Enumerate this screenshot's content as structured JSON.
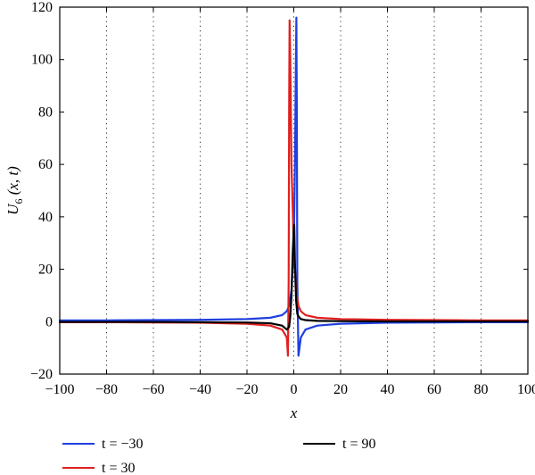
{
  "chart_data": {
    "type": "line",
    "xlabel": "x",
    "ylabel": "U6 (x, t)",
    "ylabel_parts": {
      "main": "U",
      "sub": "6",
      "rest": " (x, t)"
    },
    "xlim": [
      -100,
      100
    ],
    "ylim": [
      -20,
      120
    ],
    "xticks": [
      -100,
      -80,
      -60,
      -40,
      -20,
      0,
      20,
      40,
      60,
      80,
      100
    ],
    "yticks": [
      -20,
      0,
      20,
      40,
      60,
      80,
      100,
      120
    ],
    "xtick_labels": [
      "−100",
      "−80",
      "−60",
      "−40",
      "−20",
      "0",
      "20",
      "40",
      "60",
      "80",
      "100"
    ],
    "ytick_labels": [
      "−20",
      "0",
      "20",
      "40",
      "60",
      "80",
      "100",
      "120"
    ],
    "grid": "vertical dotted",
    "legend_position": "bottom",
    "series": [
      {
        "name": "t = −30",
        "color": "#1f3fe0",
        "x": [
          -100,
          -80,
          -60,
          -40,
          -20,
          -10,
          -5,
          -3,
          -2,
          -1,
          0,
          0.5,
          0.9,
          1.1,
          1.3,
          1.5,
          2,
          3,
          5,
          10,
          20,
          40,
          60,
          80,
          100
        ],
        "y": [
          0.5,
          0.5,
          0.6,
          0.7,
          1.0,
          1.5,
          2.5,
          4,
          6,
          12,
          28,
          60,
          100,
          116,
          80,
          15,
          -13,
          -6,
          -3,
          -1.5,
          -0.8,
          -0.4,
          -0.3,
          -0.2,
          -0.2
        ]
      },
      {
        "name": "t = 30",
        "color": "#e02020",
        "x": [
          -100,
          -80,
          -60,
          -40,
          -20,
          -10,
          -5,
          -3,
          -2.5,
          -2.2,
          -2.0,
          -1.8,
          -1.5,
          -1,
          0,
          1,
          2,
          3,
          5,
          10,
          20,
          40,
          60,
          80,
          100
        ],
        "y": [
          -0.2,
          -0.2,
          -0.3,
          -0.4,
          -0.8,
          -1.5,
          -3,
          -6,
          -13,
          15,
          80,
          115,
          100,
          60,
          28,
          12,
          6,
          4,
          2.5,
          1.5,
          1.0,
          0.7,
          0.6,
          0.5,
          0.5
        ]
      },
      {
        "name": "t = 90",
        "color": "#000000",
        "x": [
          -100,
          -80,
          -60,
          -40,
          -20,
          -10,
          -5,
          -3,
          -2,
          -1.5,
          -1,
          -0.5,
          0,
          0.2,
          0.5,
          1,
          1.5,
          2,
          3,
          5,
          10,
          20,
          40,
          60,
          80,
          100
        ],
        "y": [
          -0.1,
          -0.1,
          -0.1,
          -0.2,
          -0.3,
          -0.6,
          -1.5,
          -3,
          -2,
          2,
          10,
          25,
          36,
          37,
          22,
          8,
          3,
          2,
          1,
          0.6,
          0.3,
          0.2,
          0.1,
          0.1,
          0.1,
          0.1
        ]
      }
    ]
  }
}
